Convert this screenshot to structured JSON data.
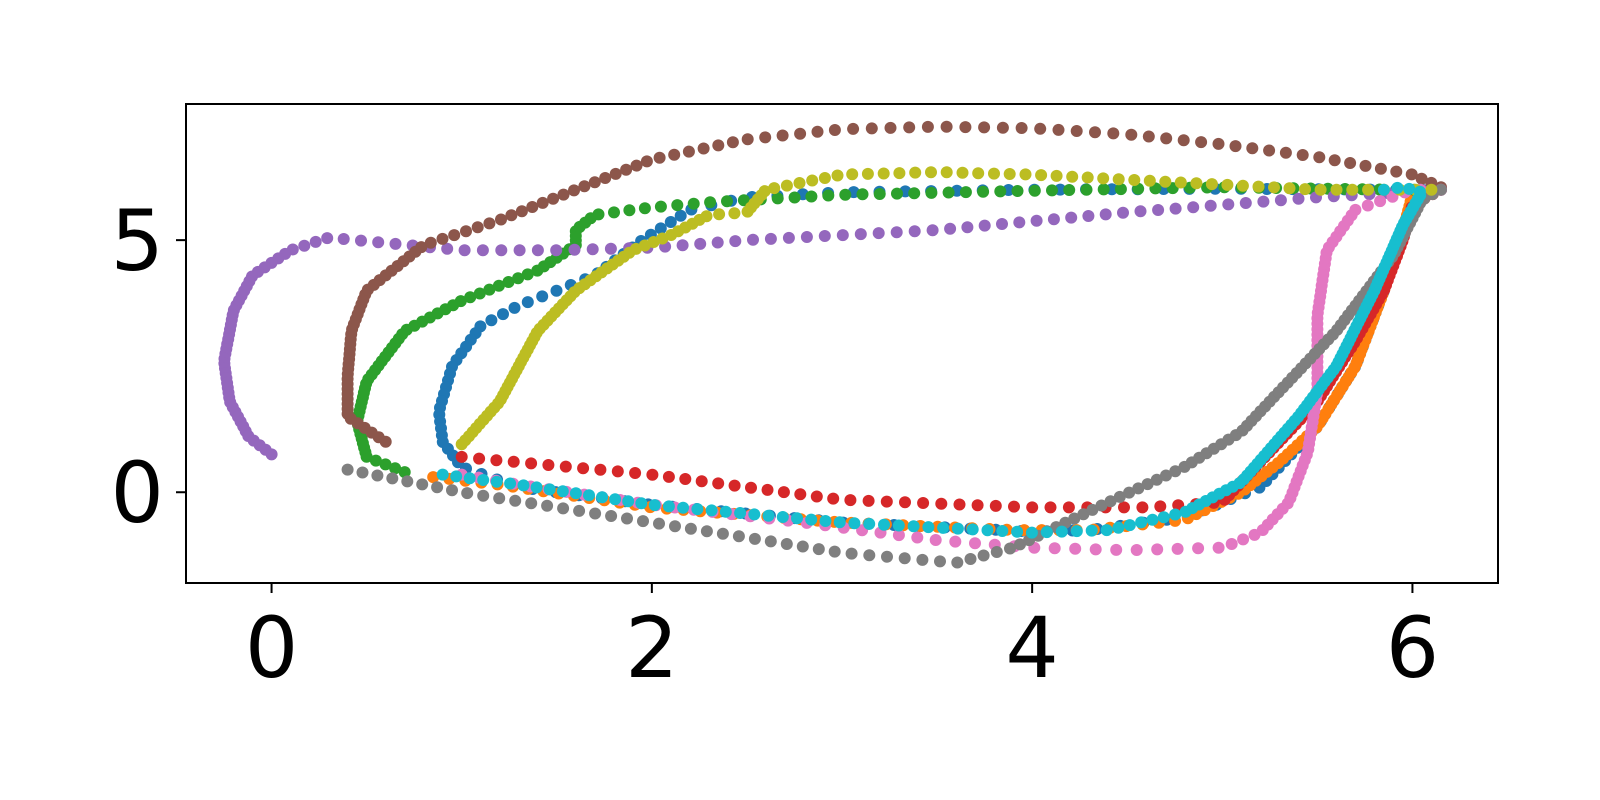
{
  "chart_data": {
    "type": "scatter",
    "title": "",
    "xlabel": "",
    "ylabel": "",
    "xlim": [
      -0.45,
      6.45
    ],
    "ylim": [
      -1.8,
      7.7
    ],
    "xticks": [
      0,
      2,
      4,
      6
    ],
    "yticks": [
      0,
      5
    ],
    "xtick_labels": [
      "0",
      "2",
      "4",
      "6"
    ],
    "ytick_labels": [
      "0",
      "5"
    ],
    "grid": false,
    "legend": "none",
    "series": [
      {
        "color": "#1f77b4",
        "anchors": [
          [
            6.05,
            6.0
          ],
          [
            5.9,
            6.0
          ],
          [
            5.0,
            6.02
          ],
          [
            4.0,
            6.0
          ],
          [
            3.0,
            5.95
          ],
          [
            2.5,
            5.85
          ],
          [
            2.2,
            5.6
          ],
          [
            1.95,
            5.0
          ],
          [
            1.7,
            4.3
          ],
          [
            1.5,
            4.0
          ],
          [
            1.3,
            3.7
          ],
          [
            1.1,
            3.3
          ],
          [
            0.95,
            2.5
          ],
          [
            0.88,
            1.6
          ],
          [
            0.9,
            1.0
          ],
          [
            1.0,
            0.5
          ],
          [
            1.3,
            0.1
          ],
          [
            2.0,
            -0.25
          ],
          [
            3.0,
            -0.6
          ],
          [
            4.0,
            -0.78
          ],
          [
            4.3,
            -0.75
          ],
          [
            4.8,
            -0.5
          ],
          [
            5.2,
            0.1
          ],
          [
            5.5,
            1.3
          ],
          [
            5.7,
            2.5
          ],
          [
            5.85,
            4.0
          ],
          [
            5.95,
            5.2
          ],
          [
            6.05,
            6.0
          ]
        ],
        "n": 150
      },
      {
        "color": "#ff7f0e",
        "anchors": [
          [
            0.85,
            0.3
          ],
          [
            1.2,
            0.15
          ],
          [
            2.0,
            -0.3
          ],
          [
            3.0,
            -0.6
          ],
          [
            3.9,
            -0.75
          ],
          [
            4.3,
            -0.75
          ],
          [
            4.8,
            -0.55
          ],
          [
            5.1,
            0.0
          ],
          [
            5.3,
            0.6
          ],
          [
            5.5,
            1.3
          ],
          [
            5.7,
            2.5
          ],
          [
            5.85,
            4.0
          ],
          [
            5.95,
            5.2
          ],
          [
            6.0,
            5.9
          ],
          [
            6.1,
            6.0
          ]
        ],
        "n": 120
      },
      {
        "color": "#2ca02c",
        "anchors": [
          [
            0.7,
            0.4
          ],
          [
            0.5,
            0.7
          ],
          [
            0.45,
            1.4
          ],
          [
            0.5,
            2.2
          ],
          [
            0.7,
            3.2
          ],
          [
            1.0,
            3.8
          ],
          [
            1.4,
            4.4
          ],
          [
            1.6,
            4.9
          ],
          [
            1.6,
            5.2
          ],
          [
            1.7,
            5.5
          ],
          [
            2.0,
            5.65
          ],
          [
            2.3,
            5.75
          ],
          [
            3.0,
            5.9
          ],
          [
            4.0,
            5.98
          ],
          [
            5.0,
            6.05
          ],
          [
            5.9,
            6.0
          ],
          [
            6.1,
            6.0
          ]
        ],
        "n": 110
      },
      {
        "color": "#d62728",
        "anchors": [
          [
            6.15,
            6.0
          ],
          [
            6.0,
            5.7
          ],
          [
            5.95,
            5.0
          ],
          [
            5.85,
            4.0
          ],
          [
            5.7,
            3.0
          ],
          [
            5.5,
            1.8
          ],
          [
            5.3,
            1.0
          ],
          [
            5.1,
            0.2
          ],
          [
            5.0,
            -0.2
          ],
          [
            4.6,
            -0.3
          ],
          [
            4.0,
            -0.3
          ],
          [
            3.0,
            -0.15
          ],
          [
            2.0,
            0.35
          ],
          [
            1.0,
            0.7
          ]
        ],
        "n": 110
      },
      {
        "color": "#9467bd",
        "anchors": [
          [
            6.15,
            6.0
          ],
          [
            5.5,
            5.85
          ],
          [
            4.5,
            5.55
          ],
          [
            3.5,
            5.2
          ],
          [
            2.5,
            5.0
          ],
          [
            2.0,
            4.85
          ],
          [
            1.5,
            4.8
          ],
          [
            1.0,
            4.8
          ],
          [
            0.5,
            4.98
          ],
          [
            0.3,
            5.05
          ],
          [
            0.1,
            4.8
          ],
          [
            -0.1,
            4.3
          ],
          [
            -0.2,
            3.6
          ],
          [
            -0.25,
            2.6
          ],
          [
            -0.22,
            1.8
          ],
          [
            -0.12,
            1.1
          ],
          [
            0.0,
            0.75
          ]
        ],
        "n": 110
      },
      {
        "color": "#8c564b",
        "anchors": [
          [
            0.6,
            1.0
          ],
          [
            0.4,
            1.5
          ],
          [
            0.4,
            2.3
          ],
          [
            0.42,
            3.2
          ],
          [
            0.5,
            4.0
          ],
          [
            0.8,
            4.9
          ],
          [
            1.2,
            5.4
          ],
          [
            1.6,
            6.0
          ],
          [
            2.0,
            6.6
          ],
          [
            2.5,
            7.0
          ],
          [
            3.0,
            7.2
          ],
          [
            3.5,
            7.25
          ],
          [
            4.0,
            7.22
          ],
          [
            4.5,
            7.1
          ],
          [
            5.0,
            6.9
          ],
          [
            5.5,
            6.65
          ],
          [
            6.0,
            6.3
          ],
          [
            6.15,
            6.05
          ]
        ],
        "n": 110
      },
      {
        "color": "#e377c2",
        "anchors": [
          [
            1.0,
            0.35
          ],
          [
            1.3,
            0.15
          ],
          [
            2.0,
            -0.25
          ],
          [
            2.8,
            -0.6
          ],
          [
            3.5,
            -0.95
          ],
          [
            4.0,
            -1.1
          ],
          [
            4.5,
            -1.15
          ],
          [
            5.0,
            -1.1
          ],
          [
            5.2,
            -0.8
          ],
          [
            5.35,
            -0.2
          ],
          [
            5.45,
            0.8
          ],
          [
            5.5,
            2.0
          ],
          [
            5.5,
            3.5
          ],
          [
            5.55,
            4.8
          ],
          [
            5.7,
            5.6
          ],
          [
            6.0,
            6.0
          ],
          [
            6.15,
            6.0
          ]
        ],
        "n": 110
      },
      {
        "color": "#7f7f7f",
        "anchors": [
          [
            0.4,
            0.45
          ],
          [
            1.0,
            0.0
          ],
          [
            2.0,
            -0.6
          ],
          [
            3.0,
            -1.2
          ],
          [
            3.6,
            -1.4
          ],
          [
            3.9,
            -1.1
          ],
          [
            4.4,
            -0.2
          ],
          [
            4.8,
            0.5
          ],
          [
            5.1,
            1.2
          ],
          [
            5.3,
            2.0
          ],
          [
            5.6,
            3.2
          ],
          [
            5.9,
            4.7
          ],
          [
            6.05,
            5.8
          ],
          [
            6.15,
            6.0
          ]
        ],
        "n": 120
      },
      {
        "color": "#bcbd22",
        "anchors": [
          [
            1.0,
            0.95
          ],
          [
            1.2,
            1.8
          ],
          [
            1.4,
            3.2
          ],
          [
            1.6,
            4.0
          ],
          [
            1.9,
            4.8
          ],
          [
            2.1,
            5.1
          ],
          [
            2.3,
            5.5
          ],
          [
            2.5,
            5.55
          ],
          [
            2.6,
            6.0
          ],
          [
            3.0,
            6.3
          ],
          [
            3.5,
            6.35
          ],
          [
            4.0,
            6.3
          ],
          [
            4.5,
            6.2
          ],
          [
            5.0,
            6.1
          ],
          [
            5.5,
            6.0
          ],
          [
            6.1,
            6.0
          ]
        ],
        "n": 110
      },
      {
        "color": "#17becf",
        "anchors": [
          [
            0.9,
            0.35
          ],
          [
            1.3,
            0.15
          ],
          [
            2.0,
            -0.25
          ],
          [
            3.0,
            -0.6
          ],
          [
            4.0,
            -0.8
          ],
          [
            4.4,
            -0.75
          ],
          [
            4.8,
            -0.4
          ],
          [
            5.1,
            0.2
          ],
          [
            5.4,
            1.5
          ],
          [
            5.6,
            2.5
          ],
          [
            5.8,
            4.0
          ],
          [
            5.95,
            5.3
          ],
          [
            6.05,
            5.95
          ],
          [
            5.95,
            6.05
          ],
          [
            5.85,
            6.0
          ]
        ],
        "n": 140
      }
    ]
  }
}
